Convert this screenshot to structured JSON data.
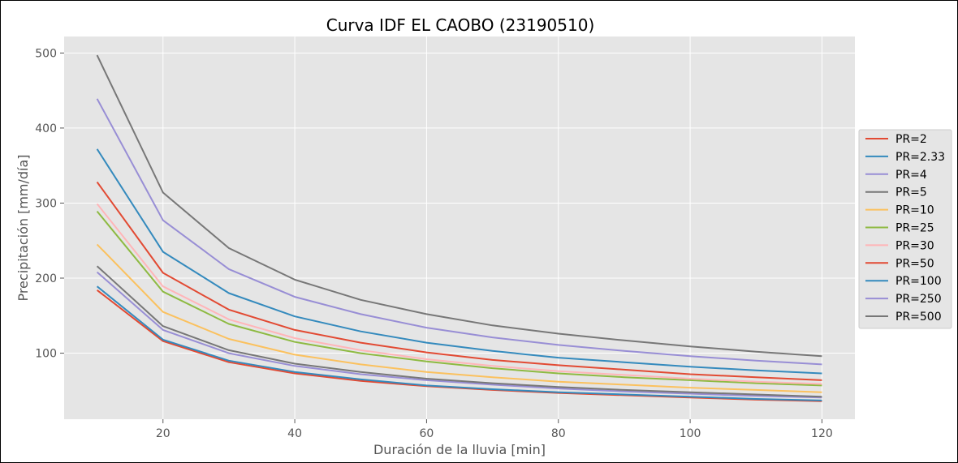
{
  "chart_data": {
    "type": "line",
    "title": "Curva IDF EL CAOBO (23190510)",
    "xlabel": "Duración de la lluvia [min]",
    "ylabel": "Precipitación [mm/día]",
    "xlim": [
      5,
      125
    ],
    "ylim": [
      12,
      522
    ],
    "xticks": [
      20,
      40,
      60,
      80,
      100,
      120
    ],
    "yticks": [
      100,
      200,
      300,
      400,
      500
    ],
    "grid": true,
    "legend_position": "right",
    "x": [
      10,
      20,
      30,
      40,
      50,
      60,
      70,
      80,
      90,
      100,
      110,
      120
    ],
    "series": [
      {
        "name": "PR=2",
        "color": "#E24A33",
        "values": [
          184,
          116,
          88,
          73,
          63,
          56,
          51,
          47,
          44,
          41,
          38,
          36
        ]
      },
      {
        "name": "PR=2.33",
        "color": "#348ABD",
        "values": [
          189,
          118,
          90,
          75,
          65,
          57,
          52,
          48,
          45,
          42,
          39,
          37
        ]
      },
      {
        "name": "PR=4",
        "color": "#988ED5",
        "values": [
          208,
          131,
          100,
          83,
          72,
          64,
          58,
          53,
          49,
          46,
          43,
          41
        ]
      },
      {
        "name": "PR=5",
        "color": "#777777",
        "values": [
          216,
          136,
          104,
          86,
          75,
          66,
          60,
          55,
          51,
          48,
          45,
          42
        ]
      },
      {
        "name": "PR=10",
        "color": "#FBC15E",
        "values": [
          245,
          155,
          119,
          98,
          85,
          75,
          68,
          62,
          58,
          54,
          51,
          48
        ]
      },
      {
        "name": "PR=25",
        "color": "#8EBA42",
        "values": [
          289,
          182,
          139,
          115,
          100,
          89,
          80,
          73,
          68,
          64,
          60,
          57
        ]
      },
      {
        "name": "PR=30",
        "color": "#FFB5B8",
        "values": [
          299,
          189,
          145,
          120,
          104,
          92,
          83,
          76,
          71,
          66,
          62,
          59
        ]
      },
      {
        "name": "PR=50",
        "color": "#E24A33",
        "values": [
          328,
          207,
          158,
          131,
          114,
          101,
          91,
          84,
          78,
          72,
          68,
          64
        ]
      },
      {
        "name": "PR=100",
        "color": "#348ABD",
        "values": [
          372,
          235,
          180,
          149,
          129,
          114,
          103,
          94,
          88,
          82,
          77,
          73
        ]
      },
      {
        "name": "PR=250",
        "color": "#988ED5",
        "values": [
          439,
          277,
          212,
          175,
          152,
          134,
          121,
          111,
          103,
          96,
          90,
          85
        ]
      },
      {
        "name": "PR=500",
        "color": "#777777",
        "values": [
          497,
          314,
          240,
          198,
          171,
          152,
          137,
          126,
          117,
          109,
          102,
          96
        ]
      }
    ]
  }
}
